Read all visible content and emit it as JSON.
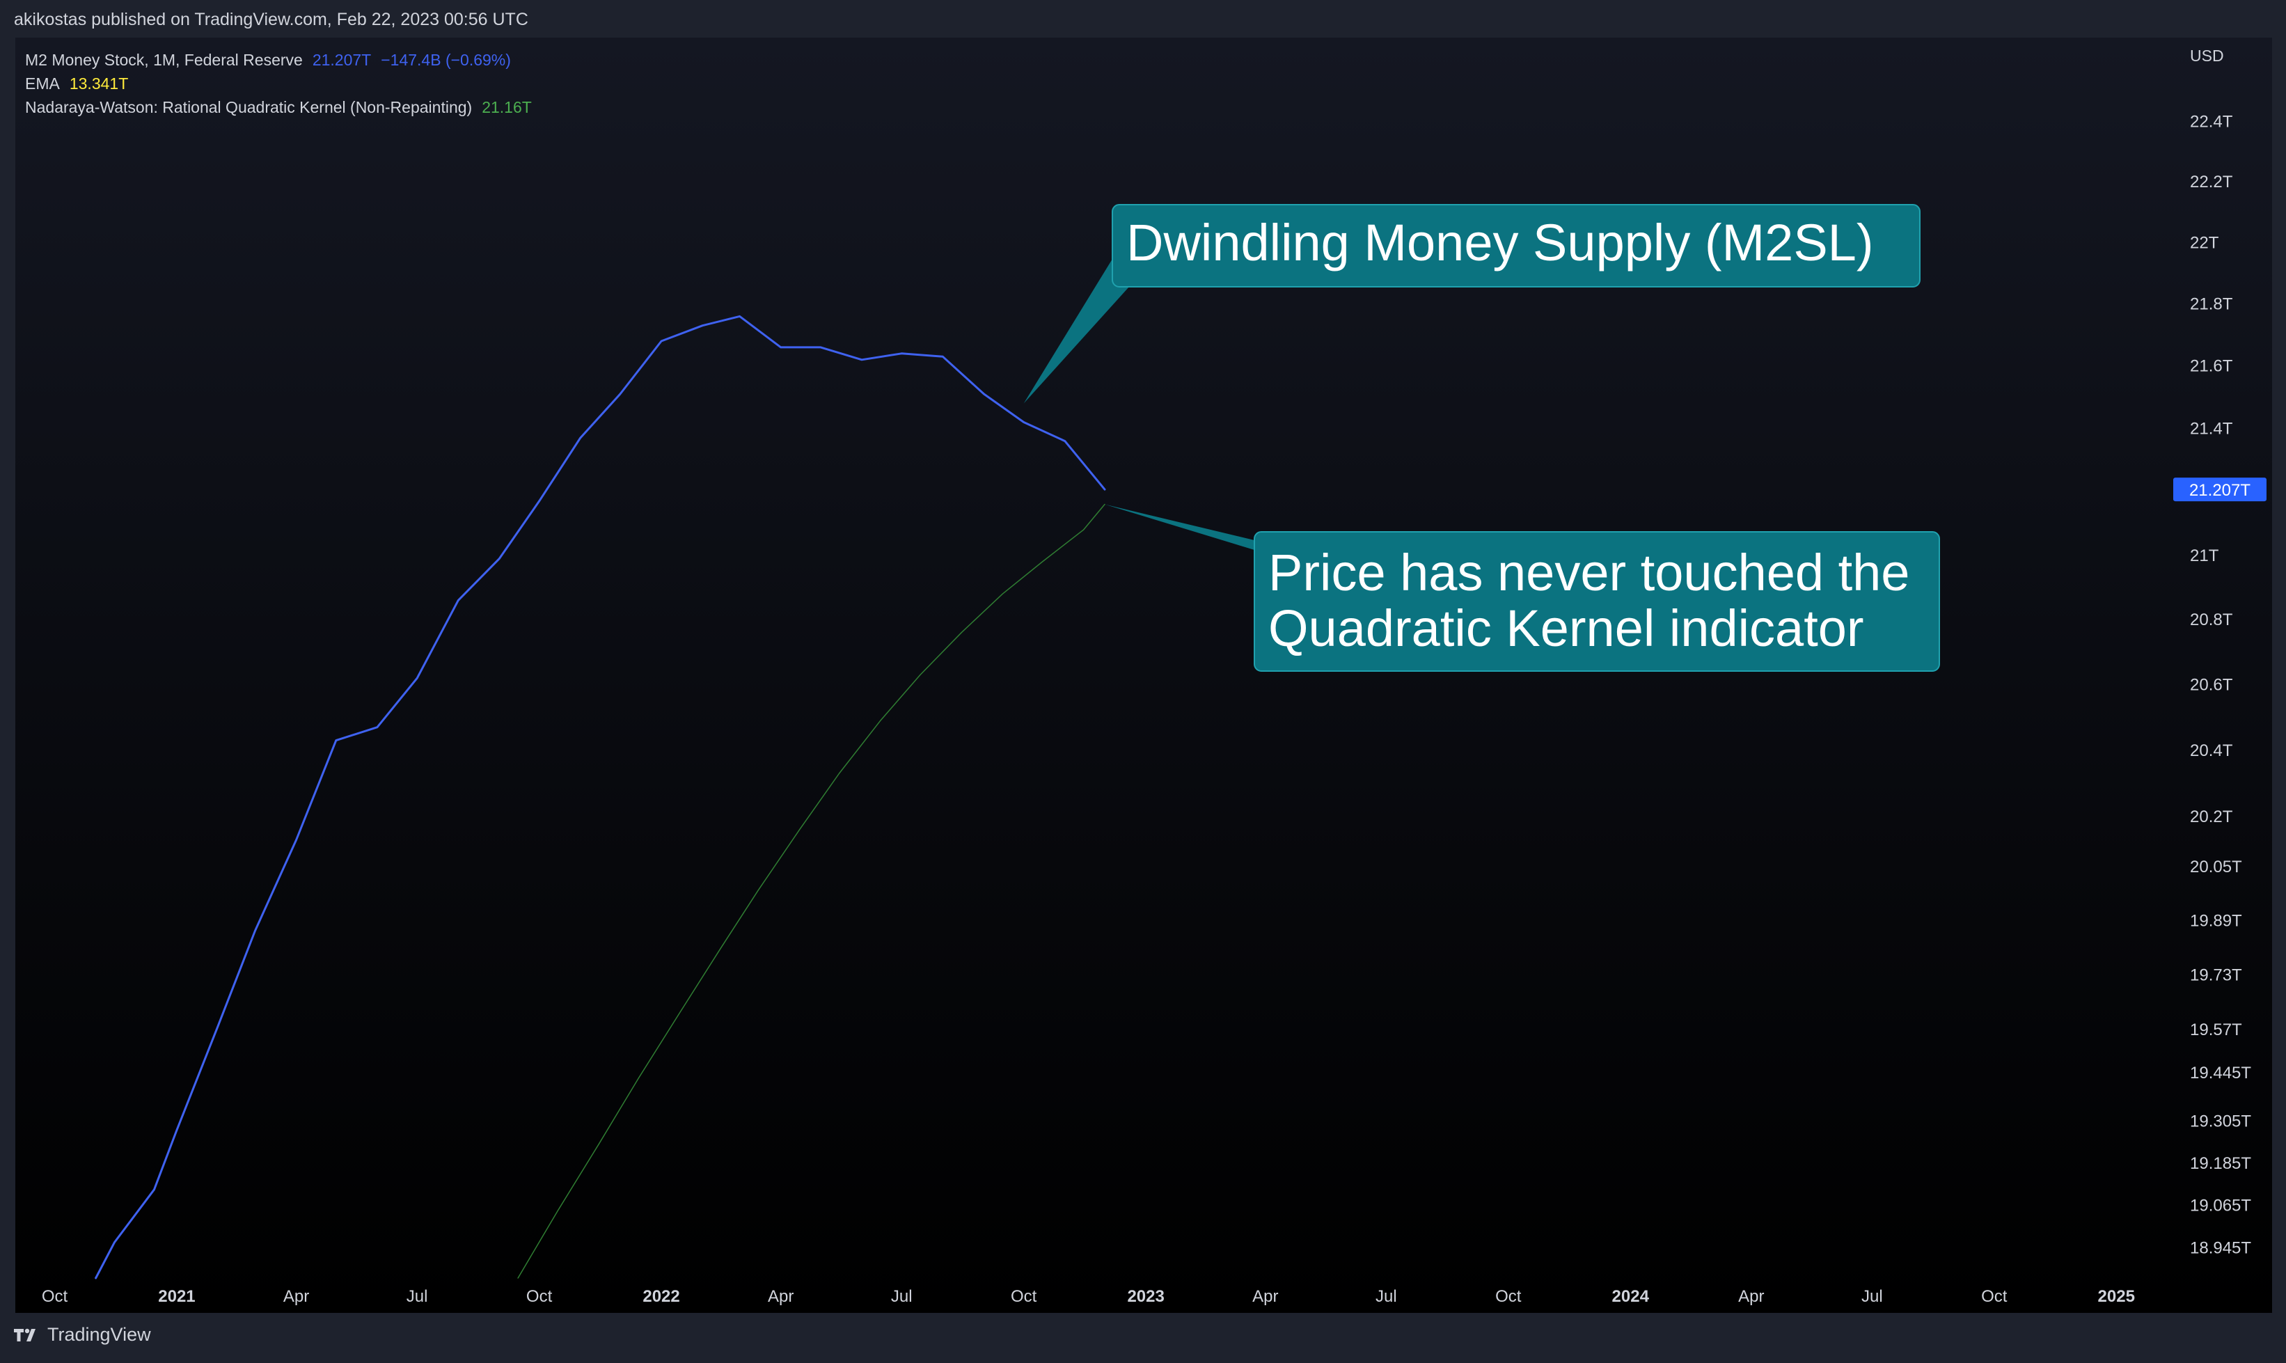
{
  "header": {
    "text": "akikostas published on TradingView.com, Feb 22, 2023 00:56 UTC"
  },
  "footer": {
    "brand": "TradingView",
    "logo_icon": "tradingview-logo-icon"
  },
  "legend": {
    "series": [
      {
        "name": "M2 Money Stock, 1M, Federal Reserve",
        "value": "21.207T",
        "change": "−147.4B (−0.69%)",
        "color": "#3f62f0"
      },
      {
        "name": "EMA",
        "value": "13.341T",
        "change": "",
        "color": "#ffeb3b"
      },
      {
        "name": "Nadaraya-Watson: Rational Quadratic Kernel (Non-Repainting)",
        "value": "21.16T",
        "change": "",
        "color": "#4caf50"
      }
    ]
  },
  "annotations": [
    {
      "text_lines": [
        "Dwindling Money Supply (M2SL)"
      ],
      "points_to": "2022-10"
    },
    {
      "text_lines": [
        "Price has never touched the",
        "Quadratic Kernel indicator"
      ],
      "points_to": "2022-12"
    }
  ],
  "chart_data": {
    "type": "line",
    "currency": "USD",
    "y_scale": "log",
    "ylim": [
      18.86,
      22.62
    ],
    "xlim": [
      "2020-09-15",
      "2025-01-25"
    ],
    "last_price_label": "21.207T",
    "x_ticks": [
      {
        "date": "2020-10-01",
        "label": "Oct",
        "bold": false
      },
      {
        "date": "2021-01-01",
        "label": "2021",
        "bold": true
      },
      {
        "date": "2021-04-01",
        "label": "Apr",
        "bold": false
      },
      {
        "date": "2021-07-01",
        "label": "Jul",
        "bold": false
      },
      {
        "date": "2021-10-01",
        "label": "Oct",
        "bold": false
      },
      {
        "date": "2022-01-01",
        "label": "2022",
        "bold": true
      },
      {
        "date": "2022-04-01",
        "label": "Apr",
        "bold": false
      },
      {
        "date": "2022-07-01",
        "label": "Jul",
        "bold": false
      },
      {
        "date": "2022-10-01",
        "label": "Oct",
        "bold": false
      },
      {
        "date": "2023-01-01",
        "label": "2023",
        "bold": true
      },
      {
        "date": "2023-04-01",
        "label": "Apr",
        "bold": false
      },
      {
        "date": "2023-07-01",
        "label": "Jul",
        "bold": false
      },
      {
        "date": "2023-10-01",
        "label": "Oct",
        "bold": false
      },
      {
        "date": "2024-01-01",
        "label": "2024",
        "bold": true
      },
      {
        "date": "2024-04-01",
        "label": "Apr",
        "bold": false
      },
      {
        "date": "2024-07-01",
        "label": "Jul",
        "bold": false
      },
      {
        "date": "2024-10-01",
        "label": "Oct",
        "bold": false
      },
      {
        "date": "2025-01-01",
        "label": "2025",
        "bold": true
      }
    ],
    "y_ticks": [
      {
        "value": 22.4,
        "label": "22.4T"
      },
      {
        "value": 22.2,
        "label": "22.2T"
      },
      {
        "value": 22.0,
        "label": "22T"
      },
      {
        "value": 21.8,
        "label": "21.8T"
      },
      {
        "value": 21.6,
        "label": "21.6T"
      },
      {
        "value": 21.4,
        "label": "21.4T"
      },
      {
        "value": 21.0,
        "label": "21T"
      },
      {
        "value": 20.8,
        "label": "20.8T"
      },
      {
        "value": 20.6,
        "label": "20.6T"
      },
      {
        "value": 20.4,
        "label": "20.4T"
      },
      {
        "value": 20.2,
        "label": "20.2T"
      },
      {
        "value": 20.05,
        "label": "20.05T"
      },
      {
        "value": 19.89,
        "label": "19.89T"
      },
      {
        "value": 19.73,
        "label": "19.73T"
      },
      {
        "value": 19.57,
        "label": "19.57T"
      },
      {
        "value": 19.445,
        "label": "19.445T"
      },
      {
        "value": 19.305,
        "label": "19.305T"
      },
      {
        "value": 19.185,
        "label": "19.185T"
      },
      {
        "value": 19.065,
        "label": "19.065T"
      },
      {
        "value": 18.945,
        "label": "18.945T"
      }
    ],
    "series": [
      {
        "name": "M2 Money Stock, 1M, Federal Reserve",
        "color": "#3f62f0",
        "width": 3,
        "points": [
          [
            "2020-11-01",
            18.86
          ],
          [
            "2020-11-15",
            18.96
          ],
          [
            "2020-12-15",
            19.11
          ],
          [
            "2021-01-01",
            19.28
          ],
          [
            "2021-02-01",
            19.58
          ],
          [
            "2021-03-01",
            19.86
          ],
          [
            "2021-04-01",
            20.13
          ],
          [
            "2021-05-01",
            20.43
          ],
          [
            "2021-06-01",
            20.47
          ],
          [
            "2021-07-01",
            20.62
          ],
          [
            "2021-08-01",
            20.86
          ],
          [
            "2021-09-01",
            20.99
          ],
          [
            "2021-10-01",
            21.17
          ],
          [
            "2021-11-01",
            21.37
          ],
          [
            "2021-12-01",
            21.51
          ],
          [
            "2022-01-01",
            21.68
          ],
          [
            "2022-02-01",
            21.73
          ],
          [
            "2022-03-01",
            21.76
          ],
          [
            "2022-04-01",
            21.66
          ],
          [
            "2022-05-01",
            21.66
          ],
          [
            "2022-06-01",
            21.62
          ],
          [
            "2022-07-01",
            21.64
          ],
          [
            "2022-08-01",
            21.63
          ],
          [
            "2022-09-01",
            21.51
          ],
          [
            "2022-10-01",
            21.42
          ],
          [
            "2022-11-01",
            21.36
          ],
          [
            "2022-12-01",
            21.207
          ]
        ]
      },
      {
        "name": "Nadaraya-Watson: Rational Quadratic Kernel (Non-Repainting)",
        "color": "#2f7d32",
        "width": 1.5,
        "points": [
          [
            "2021-09-15",
            18.86
          ],
          [
            "2021-10-15",
            19.05
          ],
          [
            "2021-11-15",
            19.24
          ],
          [
            "2021-12-15",
            19.43
          ],
          [
            "2022-01-15",
            19.62
          ],
          [
            "2022-02-15",
            19.81
          ],
          [
            "2022-03-15",
            19.98
          ],
          [
            "2022-04-15",
            20.16
          ],
          [
            "2022-05-15",
            20.33
          ],
          [
            "2022-06-15",
            20.49
          ],
          [
            "2022-07-15",
            20.63
          ],
          [
            "2022-08-15",
            20.76
          ],
          [
            "2022-09-15",
            20.88
          ],
          [
            "2022-10-15",
            20.98
          ],
          [
            "2022-11-15",
            21.08
          ],
          [
            "2022-12-01",
            21.16
          ]
        ]
      }
    ]
  }
}
